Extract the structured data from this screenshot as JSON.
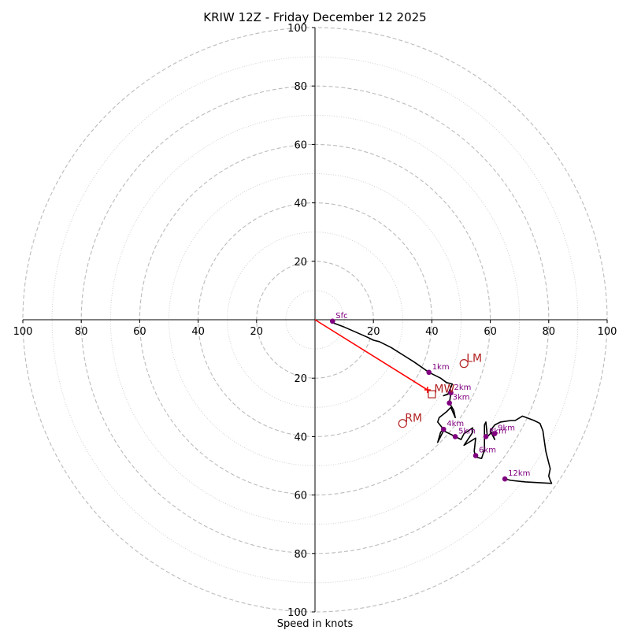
{
  "chart_data": {
    "type": "hodograph",
    "title": "KRIW 12Z - Friday December 12 2025",
    "xlabel": "Speed in knots",
    "max_speed": 100,
    "ring_step": 20,
    "minor_ring_step": 10,
    "tick_labels": [
      "100",
      "80",
      "60",
      "40",
      "20",
      "20",
      "40",
      "60",
      "80",
      "100"
    ],
    "axis_tick_values": [
      -100,
      -80,
      -60,
      -40,
      -20,
      20,
      40,
      60,
      80,
      100
    ],
    "trace": [
      [
        6,
        -1
      ],
      [
        10,
        -2.5
      ],
      [
        18,
        -6
      ],
      [
        20,
        -7
      ],
      [
        22,
        -7.5
      ],
      [
        26,
        -9.5
      ],
      [
        30,
        -12
      ],
      [
        34,
        -14.5
      ],
      [
        39,
        -18
      ],
      [
        43,
        -20
      ],
      [
        45,
        -21.5
      ],
      [
        47,
        -22
      ],
      [
        45.5,
        -25.5
      ],
      [
        44,
        -26
      ],
      [
        46.5,
        -25
      ],
      [
        46,
        -28.5
      ],
      [
        47.5,
        -31
      ],
      [
        48,
        -33.5
      ],
      [
        46.5,
        -30
      ],
      [
        45,
        -31.5
      ],
      [
        42.5,
        -33.5
      ],
      [
        42,
        -35
      ],
      [
        44,
        -37.5
      ],
      [
        43,
        -38.5
      ],
      [
        42,
        -42
      ],
      [
        44,
        -38
      ],
      [
        46,
        -39
      ],
      [
        48,
        -40
      ],
      [
        50,
        -41
      ],
      [
        51,
        -39
      ],
      [
        54,
        -37
      ],
      [
        54,
        -38.5
      ],
      [
        52,
        -41.5
      ],
      [
        51,
        -43
      ],
      [
        55,
        -40.5
      ],
      [
        54.5,
        -45
      ],
      [
        55,
        -47
      ],
      [
        57,
        -47.5
      ],
      [
        58,
        -44.5
      ],
      [
        58,
        -42
      ],
      [
        58,
        -36
      ],
      [
        58.5,
        -35
      ],
      [
        59,
        -40
      ],
      [
        60.5,
        -38.5
      ],
      [
        61.5,
        -41
      ],
      [
        60,
        -38
      ],
      [
        61.5,
        -36
      ],
      [
        63.5,
        -35
      ],
      [
        67,
        -34.5
      ],
      [
        68.5,
        -34.5
      ],
      [
        71,
        -33
      ],
      [
        75,
        -34.5
      ],
      [
        77,
        -35.5
      ],
      [
        78,
        -38
      ],
      [
        78.5,
        -41.5
      ],
      [
        79,
        -45
      ],
      [
        80,
        -49
      ],
      [
        80.5,
        -51
      ],
      [
        80,
        -53.5
      ],
      [
        80.5,
        -55
      ],
      [
        81,
        -56
      ],
      [
        72,
        -55.5
      ],
      [
        67,
        -55
      ],
      [
        65,
        -54.5
      ]
    ],
    "height_markers": [
      {
        "label": "Sfc",
        "u": 6,
        "v": -0.5
      },
      {
        "label": "1km",
        "u": 39,
        "v": -18
      },
      {
        "label": "2km",
        "u": 46.5,
        "v": -25
      },
      {
        "label": "3km",
        "u": 46,
        "v": -28.5
      },
      {
        "label": "4km",
        "u": 44,
        "v": -37.5
      },
      {
        "label": "5km",
        "u": 48,
        "v": -40
      },
      {
        "label": "6km",
        "u": 55,
        "v": -46.5
      },
      {
        "label": "8km",
        "u": 58.5,
        "v": -40
      },
      {
        "label": "9km",
        "u": 61.5,
        "v": -39
      },
      {
        "label": "12km",
        "u": 65,
        "v": -54.5
      }
    ],
    "motion_vector": {
      "u": 38.5,
      "v": -24
    },
    "storm_motions": [
      {
        "label": "LM",
        "u": 51,
        "v": -15,
        "marker": "circle"
      },
      {
        "label": "MW",
        "u": 40,
        "v": -25.5,
        "marker": "square"
      },
      {
        "label": "RM",
        "u": 30,
        "v": -35.5,
        "marker": "circle"
      }
    ],
    "colors": {
      "trace": "#000000",
      "markers": "#800080",
      "storm_motion": "#b22222",
      "vector": "#ff0000",
      "rings": "#bbbbbb"
    }
  }
}
